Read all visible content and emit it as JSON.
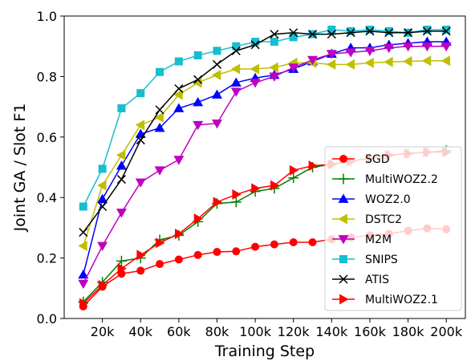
{
  "chart_data": {
    "type": "line",
    "xlabel": "Training Step",
    "ylabel": "Joint GA / Slot F1",
    "xlim": [
      0,
      210000
    ],
    "ylim": [
      0.0,
      1.0
    ],
    "xticks": [
      20000,
      40000,
      60000,
      80000,
      100000,
      120000,
      140000,
      160000,
      180000,
      200000
    ],
    "xtick_labels": [
      "20k",
      "40k",
      "60k",
      "80k",
      "100k",
      "120k",
      "140k",
      "160k",
      "180k",
      "200k"
    ],
    "yticks": [
      0.0,
      0.2,
      0.4,
      0.6,
      0.8,
      1.0
    ],
    "ytick_labels": [
      "0.0",
      "0.2",
      "0.4",
      "0.6",
      "0.8",
      "1.0"
    ],
    "grid": false,
    "legend_position": "lower-right",
    "x": [
      10000,
      20000,
      30000,
      40000,
      50000,
      60000,
      70000,
      80000,
      90000,
      100000,
      110000,
      120000,
      130000,
      140000,
      150000,
      160000,
      170000,
      180000,
      190000,
      200000
    ],
    "series": [
      {
        "name": "SGD",
        "color": "#ff0000",
        "marker": "circle",
        "values": [
          0.04,
          0.105,
          0.148,
          0.158,
          0.18,
          0.195,
          0.21,
          0.22,
          0.222,
          0.237,
          0.245,
          0.252,
          0.252,
          0.262,
          0.268,
          0.275,
          0.28,
          0.29,
          0.298,
          0.295
        ]
      },
      {
        "name": "MultiWOZ2.2",
        "color": "#008000",
        "marker": "plus",
        "values": [
          0.055,
          0.12,
          0.19,
          0.2,
          0.26,
          0.275,
          0.32,
          0.38,
          0.385,
          0.42,
          0.43,
          0.465,
          0.5,
          0.51,
          0.52,
          0.53,
          0.54,
          0.545,
          0.55,
          0.555
        ]
      },
      {
        "name": "WOZ2.0",
        "color": "#0000ff",
        "marker": "triangle-up",
        "values": [
          0.145,
          0.395,
          0.505,
          0.61,
          0.63,
          0.695,
          0.715,
          0.74,
          0.78,
          0.795,
          0.805,
          0.825,
          0.85,
          0.875,
          0.895,
          0.895,
          0.905,
          0.91,
          0.915,
          0.915
        ]
      },
      {
        "name": "DSTC2",
        "color": "#bfbf00",
        "marker": "triangle-left",
        "values": [
          0.24,
          0.44,
          0.54,
          0.64,
          0.665,
          0.74,
          0.78,
          0.805,
          0.825,
          0.825,
          0.83,
          0.845,
          0.845,
          0.84,
          0.84,
          0.845,
          0.848,
          0.85,
          0.852,
          0.852
        ]
      },
      {
        "name": "M2M",
        "color": "#bf00bf",
        "marker": "triangle-down",
        "values": [
          0.115,
          0.24,
          0.35,
          0.45,
          0.49,
          0.525,
          0.64,
          0.645,
          0.75,
          0.78,
          0.8,
          0.83,
          0.855,
          0.875,
          0.88,
          0.885,
          0.895,
          0.9,
          0.9,
          0.9
        ]
      },
      {
        "name": "SNIPS",
        "color": "#17becf",
        "marker": "square",
        "values": [
          0.37,
          0.495,
          0.695,
          0.745,
          0.815,
          0.85,
          0.87,
          0.885,
          0.9,
          0.915,
          0.915,
          0.93,
          0.94,
          0.955,
          0.95,
          0.955,
          0.95,
          0.945,
          0.955,
          0.955
        ]
      },
      {
        "name": "ATIS",
        "color": "#000000",
        "marker": "x",
        "values": [
          0.285,
          0.37,
          0.46,
          0.59,
          0.69,
          0.76,
          0.79,
          0.84,
          0.885,
          0.905,
          0.94,
          0.945,
          0.94,
          0.94,
          0.945,
          0.95,
          0.945,
          0.945,
          0.95,
          0.95
        ]
      },
      {
        "name": "MultiWOZ2.1",
        "color": "#ff0000",
        "marker": "triangle-right",
        "values": [
          0.05,
          0.11,
          0.165,
          0.21,
          0.25,
          0.28,
          0.33,
          0.385,
          0.41,
          0.43,
          0.44,
          0.49,
          0.505,
          0.51,
          0.52,
          0.53,
          0.54,
          0.545,
          0.55,
          0.55
        ]
      }
    ]
  }
}
